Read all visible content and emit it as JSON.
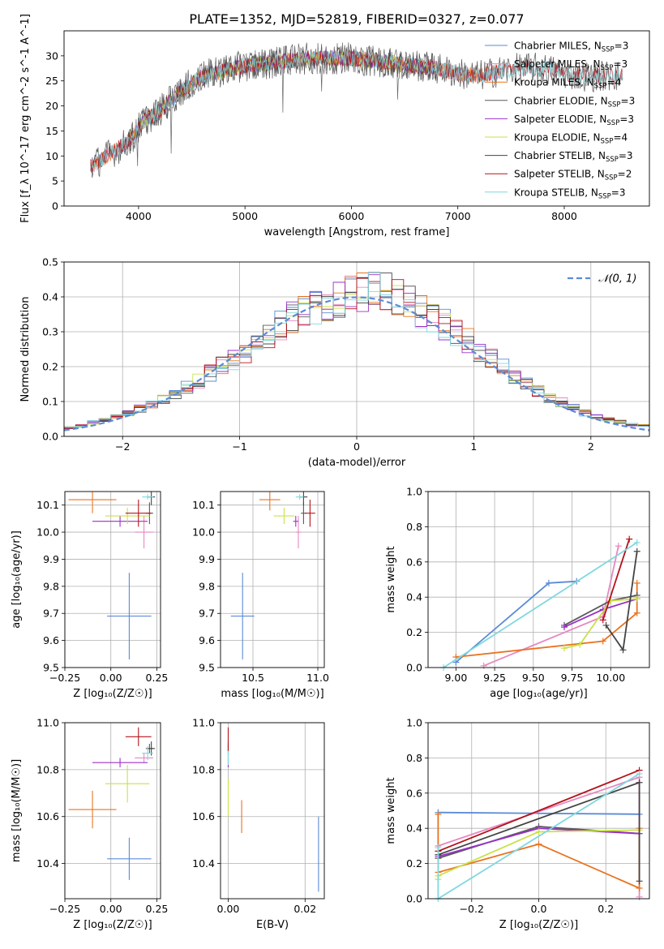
{
  "figure_title": "PLATE=1352, MJD=52819, FIBERID=0327, z=0.077",
  "colors": {
    "chabrier_miles": "#5b8bd6",
    "salpeter_miles": "#e589c0",
    "kroupa_miles": "#e8731f",
    "chabrier_elodie": "#595959",
    "salpeter_elodie": "#9b30c8",
    "kroupa_elodie": "#c9e24a",
    "chabrier_stelib": "#444444",
    "salpeter_stelib": "#b5121b",
    "kroupa_stelib": "#7fd8de",
    "normal_curve": "#5b8bd6"
  },
  "chart_data": [
    {
      "id": "spectrum",
      "type": "line",
      "xlabel": "wavelength [Angstrom, rest frame]",
      "ylabel": "Flux [f_λ 10^-17 erg cm^-2 s^-1 A^-1]",
      "xlim": [
        3300,
        8800
      ],
      "ylim": [
        0,
        35
      ],
      "xticks": [
        "4000",
        "5000",
        "6000",
        "7000",
        "8000"
      ],
      "yticks": [
        "0",
        "5",
        "10",
        "15",
        "20",
        "25",
        "30"
      ],
      "grid": false,
      "legend_position": "top-right",
      "series": [
        {
          "name": "Chabrier MILES, N_SSP=3",
          "key": "chabrier_miles",
          "name_base": "Chabrier MILES, N",
          "name_sub": "SSP",
          "name_tail": "=3",
          "x": [
            3550,
            7400
          ]
        },
        {
          "name": "Salpeter MILES, N_SSP=3",
          "key": "salpeter_miles",
          "name_base": "Salpeter MILES, N",
          "name_sub": "SSP",
          "name_tail": "=3",
          "x": [
            3550,
            7400
          ]
        },
        {
          "name": "Kroupa MILES, N_SSP=4",
          "key": "kroupa_miles",
          "name_base": "Kroupa MILES, N",
          "name_sub": "SSP",
          "name_tail": "=4",
          "x": [
            3550,
            7400
          ]
        },
        {
          "name": "Chabrier ELODIE, N_SSP=3",
          "key": "chabrier_elodie",
          "name_base": "Chabrier ELODIE, N",
          "name_sub": "SSP",
          "name_tail": "=3",
          "x": [
            3900,
            6800
          ]
        },
        {
          "name": "Salpeter ELODIE, N_SSP=3",
          "key": "salpeter_elodie",
          "name_base": "Salpeter ELODIE, N",
          "name_sub": "SSP",
          "name_tail": "=3",
          "x": [
            3900,
            6800
          ]
        },
        {
          "name": "Kroupa ELODIE, N_SSP=4",
          "key": "kroupa_elodie",
          "name_base": "Kroupa ELODIE, N",
          "name_sub": "SSP",
          "name_tail": "=4",
          "x": [
            3900,
            6800
          ]
        },
        {
          "name": "Chabrier STELIB, N_SSP=3",
          "key": "chabrier_stelib",
          "name_base": "Chabrier STELIB, N",
          "name_sub": "SSP",
          "name_tail": "=3",
          "x": [
            3550,
            8550
          ]
        },
        {
          "name": "Salpeter STELIB, N_SSP=2",
          "key": "salpeter_stelib",
          "name_base": "Salpeter STELIB, N",
          "name_sub": "SSP",
          "name_tail": "=2",
          "x": [
            3550,
            8550
          ]
        },
        {
          "name": "Kroupa STELIB, N_SSP=3",
          "key": "kroupa_stelib",
          "name_base": "Kroupa STELIB, N",
          "name_sub": "SSP",
          "name_tail": "=3",
          "x": [
            3550,
            8550
          ]
        }
      ],
      "data_envelope": {
        "x": [
          3550,
          3700,
          3850,
          3950,
          4050,
          4200,
          4400,
          4600,
          4800,
          5000,
          5200,
          5400,
          5600,
          5800,
          6000,
          6200,
          6400,
          6600,
          6800,
          7000,
          7200,
          7400,
          7600,
          7800,
          8000,
          8200,
          8400,
          8550
        ],
        "y": [
          8,
          10,
          12,
          14,
          17,
          19,
          23,
          26,
          27,
          28,
          28.5,
          29,
          29.5,
          29.5,
          29.5,
          29,
          28.5,
          28,
          27.5,
          26.5,
          26,
          27,
          27.5,
          27.5,
          26.5,
          26,
          26,
          26
        ]
      }
    },
    {
      "id": "residuals",
      "type": "line",
      "xlabel": "(data-model)/error",
      "ylabel": "Normed distribution",
      "xlim": [
        -2.5,
        2.5
      ],
      "ylim": [
        0,
        0.5
      ],
      "xticks": [
        "−2",
        "−1",
        "0",
        "1",
        "2"
      ],
      "yticks": [
        "0.0",
        "0.1",
        "0.2",
        "0.3",
        "0.4",
        "0.5"
      ],
      "grid": true,
      "legend_position": "top-right",
      "legend": "𝒩(0, 1)",
      "histogram_bin_centers": [
        -2.4,
        -2.2,
        -2.0,
        -1.8,
        -1.6,
        -1.4,
        -1.2,
        -1.0,
        -0.8,
        -0.6,
        -0.4,
        -0.2,
        0.0,
        0.2,
        0.4,
        0.6,
        0.8,
        1.0,
        1.2,
        1.4,
        1.6,
        1.8,
        2.0,
        2.2,
        2.4
      ],
      "histogram_values": [
        0.025,
        0.045,
        0.06,
        0.085,
        0.11,
        0.15,
        0.19,
        0.23,
        0.28,
        0.33,
        0.37,
        0.39,
        0.41,
        0.42,
        0.39,
        0.35,
        0.31,
        0.26,
        0.21,
        0.16,
        0.12,
        0.09,
        0.06,
        0.045,
        0.03
      ]
    },
    {
      "id": "age_vs_z",
      "type": "scatter",
      "xlabel": "Z [log₁₀(Z/Z☉)]",
      "ylabel": "age  [log₁₀(age/yr)]",
      "xlim": [
        -0.25,
        0.27
      ],
      "ylim": [
        9.5,
        10.15
      ],
      "xticks": [
        "−0.25",
        "0.00",
        "0.25"
      ],
      "yticks": [
        "9.5",
        "9.6",
        "9.7",
        "9.8",
        "9.9",
        "10.0",
        "10.1"
      ],
      "grid": true,
      "points": [
        {
          "key": "chabrier_miles",
          "x": 0.1,
          "y": 9.69,
          "xerr": 0.12,
          "yerr": 0.16
        },
        {
          "key": "salpeter_miles",
          "x": 0.18,
          "y": 10.0,
          "xerr": 0.05,
          "yerr": 0.06
        },
        {
          "key": "kroupa_miles",
          "x": -0.1,
          "y": 10.12,
          "xerr": 0.13,
          "yerr": 0.05
        },
        {
          "key": "chabrier_elodie",
          "x": 0.21,
          "y": 10.07,
          "xerr": 0.02,
          "yerr": 0.04
        },
        {
          "key": "salpeter_elodie",
          "x": 0.05,
          "y": 10.04,
          "xerr": 0.15,
          "yerr": 0.02
        },
        {
          "key": "kroupa_elodie",
          "x": 0.09,
          "y": 10.06,
          "xerr": 0.12,
          "yerr": 0.03
        },
        {
          "key": "chabrier_stelib",
          "x": 0.22,
          "y": 10.13,
          "xerr": 0.02,
          "yerr": 0.03
        },
        {
          "key": "salpeter_stelib",
          "x": 0.15,
          "y": 10.07,
          "xerr": 0.07,
          "yerr": 0.05
        },
        {
          "key": "kroupa_stelib",
          "x": 0.2,
          "y": 10.13,
          "xerr": 0.03,
          "yerr": 0.01
        }
      ]
    },
    {
      "id": "age_vs_mass",
      "type": "scatter",
      "xlabel": "mass [log₁₀(M/M☉)]",
      "ylabel": "",
      "xlim": [
        10.25,
        11.05
      ],
      "ylim": [
        9.5,
        10.15
      ],
      "xticks": [
        "10.5",
        "11.0"
      ],
      "yticks": [
        "9.5",
        "9.6",
        "9.7",
        "9.8",
        "9.9",
        "10.0",
        "10.1"
      ],
      "grid": true,
      "points": [
        {
          "key": "chabrier_miles",
          "x": 10.42,
          "y": 9.69,
          "xerr": 0.09,
          "yerr": 0.16
        },
        {
          "key": "salpeter_miles",
          "x": 10.85,
          "y": 10.0,
          "xerr": 0.02,
          "yerr": 0.06
        },
        {
          "key": "kroupa_miles",
          "x": 10.63,
          "y": 10.12,
          "xerr": 0.08,
          "yerr": 0.04
        },
        {
          "key": "chabrier_elodie",
          "x": 10.89,
          "y": 10.07,
          "xerr": 0.02,
          "yerr": 0.04
        },
        {
          "key": "salpeter_elodie",
          "x": 10.83,
          "y": 10.04,
          "xerr": 0.02,
          "yerr": 0.02
        },
        {
          "key": "kroupa_elodie",
          "x": 10.74,
          "y": 10.06,
          "xerr": 0.08,
          "yerr": 0.03
        },
        {
          "key": "chabrier_stelib",
          "x": 10.89,
          "y": 10.13,
          "xerr": 0.03,
          "yerr": 0.03
        },
        {
          "key": "salpeter_stelib",
          "x": 10.94,
          "y": 10.07,
          "xerr": 0.04,
          "yerr": 0.05
        },
        {
          "key": "kroupa_stelib",
          "x": 10.86,
          "y": 10.13,
          "xerr": 0.03,
          "yerr": 0.01
        }
      ]
    },
    {
      "id": "weight_vs_age",
      "type": "line",
      "xlabel": "age  [log₁₀(age/yr)]",
      "ylabel": "mass weight",
      "xlim": [
        8.82,
        10.25
      ],
      "ylim": [
        0,
        1
      ],
      "xticks": [
        "9.00",
        "9.25",
        "9.50",
        "9.75",
        "10.00"
      ],
      "yticks": [
        "0.0",
        "0.2",
        "0.4",
        "0.6",
        "0.8",
        "1.0"
      ],
      "grid": true,
      "series": [
        {
          "key": "chabrier_miles",
          "x": [
            9.0,
            9.6,
            9.78
          ],
          "y": [
            0.03,
            0.48,
            0.49
          ]
        },
        {
          "key": "salpeter_miles",
          "x": [
            9.18,
            9.95,
            10.05
          ],
          "y": [
            0.01,
            0.29,
            0.69
          ]
        },
        {
          "key": "kroupa_miles",
          "x": [
            9.0,
            9.95,
            10.17,
            10.17
          ],
          "y": [
            0.06,
            0.15,
            0.31,
            0.48
          ]
        },
        {
          "key": "chabrier_elodie",
          "x": [
            9.7,
            10.0,
            10.17
          ],
          "y": [
            0.24,
            0.38,
            0.41
          ]
        },
        {
          "key": "salpeter_elodie",
          "x": [
            9.7,
            9.95,
            10.17
          ],
          "y": [
            0.23,
            0.33,
            0.39
          ]
        },
        {
          "key": "kroupa_elodie",
          "x": [
            9.7,
            9.8,
            10.0,
            10.17
          ],
          "y": [
            0.11,
            0.13,
            0.38,
            0.39
          ]
        },
        {
          "key": "chabrier_stelib",
          "x": [
            9.97,
            10.08,
            10.17
          ],
          "y": [
            0.24,
            0.1,
            0.66
          ]
        },
        {
          "key": "salpeter_stelib",
          "x": [
            9.95,
            10.12
          ],
          "y": [
            0.27,
            0.73
          ]
        },
        {
          "key": "kroupa_stelib",
          "x": [
            8.92,
            10.17
          ],
          "y": [
            0.0,
            0.71
          ]
        }
      ]
    },
    {
      "id": "mass_vs_z",
      "type": "scatter",
      "xlabel": "Z [log₁₀(Z/Z☉)]",
      "ylabel": "mass [log₁₀(M/M☉)]",
      "xlim": [
        -0.25,
        0.27
      ],
      "ylim": [
        10.25,
        11.0
      ],
      "xticks": [
        "−0.25",
        "0.00",
        "0.25"
      ],
      "yticks": [
        "10.4",
        "10.6",
        "10.8",
        "11.0"
      ],
      "grid": true,
      "points": [
        {
          "key": "chabrier_miles",
          "x": 0.1,
          "y": 10.42,
          "xerr": 0.12,
          "yerr": 0.09
        },
        {
          "key": "salpeter_miles",
          "x": 0.18,
          "y": 10.85,
          "xerr": 0.05,
          "yerr": 0.02
        },
        {
          "key": "kroupa_miles",
          "x": -0.1,
          "y": 10.63,
          "xerr": 0.13,
          "yerr": 0.08
        },
        {
          "key": "chabrier_elodie",
          "x": 0.21,
          "y": 10.89,
          "xerr": 0.02,
          "yerr": 0.02
        },
        {
          "key": "salpeter_elodie",
          "x": 0.05,
          "y": 10.83,
          "xerr": 0.15,
          "yerr": 0.02
        },
        {
          "key": "kroupa_elodie",
          "x": 0.09,
          "y": 10.74,
          "xerr": 0.12,
          "yerr": 0.08
        },
        {
          "key": "chabrier_stelib",
          "x": 0.22,
          "y": 10.89,
          "xerr": 0.02,
          "yerr": 0.03
        },
        {
          "key": "salpeter_stelib",
          "x": 0.15,
          "y": 10.94,
          "xerr": 0.07,
          "yerr": 0.04
        },
        {
          "key": "kroupa_stelib",
          "x": 0.2,
          "y": 10.87,
          "xerr": 0.03,
          "yerr": 0.03
        }
      ]
    },
    {
      "id": "mass_vs_ebv",
      "type": "scatter",
      "xlabel": "E(B-V)",
      "ylabel": "",
      "xlim": [
        -0.002,
        0.025
      ],
      "ylim": [
        10.25,
        11.0
      ],
      "xticks": [
        "0.00",
        "0.02"
      ],
      "yticks": [
        "10.4",
        "10.6",
        "10.8",
        "11.0"
      ],
      "grid": true,
      "points": [
        {
          "key": "chabrier_miles",
          "x": 0.0235,
          "y": 10.44,
          "xerr": 0,
          "yerr": 0.16
        },
        {
          "key": "salpeter_miles",
          "x": 0.0,
          "y": 10.85,
          "xerr": 0,
          "yerr": 0.02
        },
        {
          "key": "kroupa_miles",
          "x": 0.0035,
          "y": 10.6,
          "xerr": 0,
          "yerr": 0.07
        },
        {
          "key": "chabrier_elodie",
          "x": 0.0,
          "y": 10.89,
          "xerr": 0,
          "yerr": 0.02
        },
        {
          "key": "salpeter_elodie",
          "x": 0.0,
          "y": 10.83,
          "xerr": 0,
          "yerr": 0.02
        },
        {
          "key": "kroupa_elodie",
          "x": 0.0,
          "y": 10.68,
          "xerr": 0,
          "yerr": 0.08
        },
        {
          "key": "chabrier_stelib",
          "x": 0.0,
          "y": 10.89,
          "xerr": 0,
          "yerr": 0.03
        },
        {
          "key": "salpeter_stelib",
          "x": 0.0,
          "y": 10.93,
          "xerr": 0,
          "yerr": 0.05
        },
        {
          "key": "kroupa_stelib",
          "x": 0.0,
          "y": 10.85,
          "xerr": 0,
          "yerr": 0.03
        }
      ]
    },
    {
      "id": "weight_vs_z",
      "type": "line",
      "xlabel": "Z [log₁₀(Z/Z☉)]",
      "ylabel": "mass weight",
      "xlim": [
        -0.33,
        0.33
      ],
      "ylim": [
        0,
        1
      ],
      "xticks": [
        "−0.2",
        "0.0",
        "0.2"
      ],
      "yticks": [
        "0.0",
        "0.2",
        "0.4",
        "0.6",
        "0.8",
        "1.0"
      ],
      "grid": true,
      "series": [
        {
          "key": "chabrier_miles",
          "x": [
            -0.3,
            0.3
          ],
          "y": [
            0.49,
            0.48
          ]
        },
        {
          "key": "salpeter_miles",
          "x": [
            -0.3,
            0.3,
            0.3
          ],
          "y": [
            0.3,
            0.69,
            0.01
          ]
        },
        {
          "key": "kroupa_miles",
          "x": [
            -0.3,
            -0.3,
            0.0,
            0.3,
            0.3
          ],
          "y": [
            0.48,
            0.15,
            0.31,
            0.06,
            0.4
          ]
        },
        {
          "key": "chabrier_elodie",
          "x": [
            -0.3,
            0.0,
            0.3
          ],
          "y": [
            0.23,
            0.41,
            0.37
          ]
        },
        {
          "key": "salpeter_elodie",
          "x": [
            -0.3,
            0.0,
            0.3
          ],
          "y": [
            0.24,
            0.4,
            0.37
          ]
        },
        {
          "key": "kroupa_elodie",
          "x": [
            -0.3,
            -0.3,
            0.0,
            0.3
          ],
          "y": [
            0.11,
            0.13,
            0.38,
            0.39
          ]
        },
        {
          "key": "chabrier_stelib",
          "x": [
            -0.3,
            0.3,
            0.3
          ],
          "y": [
            0.25,
            0.66,
            0.1
          ]
        },
        {
          "key": "salpeter_stelib",
          "x": [
            -0.3,
            0.3
          ],
          "y": [
            0.27,
            0.73
          ]
        },
        {
          "key": "kroupa_stelib",
          "x": [
            -0.3,
            -0.3,
            0.3
          ],
          "y": [
            0.29,
            0.0,
            0.71
          ]
        }
      ]
    }
  ]
}
